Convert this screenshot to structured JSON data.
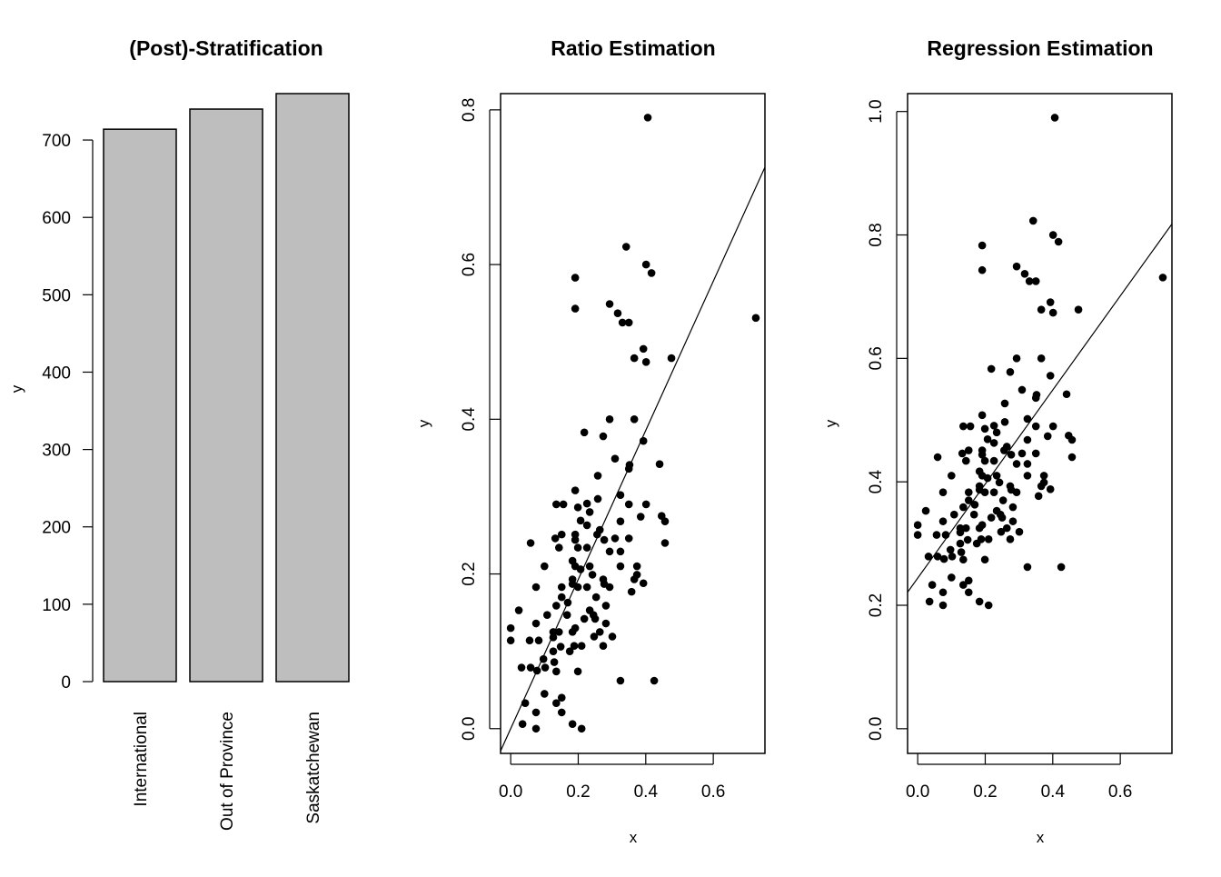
{
  "chart_data": [
    {
      "type": "bar",
      "title": "(Post)-Stratification",
      "xlabel": "",
      "ylabel": "y",
      "categories": [
        "International",
        "Out of Province",
        "Saskatchewan"
      ],
      "values": [
        714,
        740,
        760
      ],
      "ylim": [
        0,
        760
      ],
      "yticks": [
        0,
        100,
        200,
        300,
        400,
        500,
        600,
        700
      ],
      "bar_color": "#bebebe",
      "grid": false
    },
    {
      "type": "scatter",
      "title": "Ratio Estimation",
      "xlabel": "x",
      "ylabel": "y",
      "xlim": [
        -0.03,
        0.753
      ],
      "ylim": [
        -0.032,
        0.821
      ],
      "xticks": [
        "0.0",
        "0.2",
        "0.4",
        "0.6"
      ],
      "yticks": [
        "0.0",
        "0.2",
        "0.4",
        "0.6",
        "0.8"
      ],
      "grid": false,
      "fit_line": {
        "intercept": 0,
        "slope": 0.964
      },
      "x": [
        0.406,
        0.342,
        0.401,
        0.417,
        0.191,
        0.191,
        0.293,
        0.317,
        0.331,
        0.35,
        0.726,
        0.393,
        0.366,
        0.401,
        0.476,
        0.293,
        0.366,
        0.218,
        0.274,
        0.393,
        0.309,
        0.352,
        0.35,
        0.441,
        0.258,
        0.191,
        0.325,
        0.135,
        0.156,
        0.199,
        0.226,
        0.234,
        0.258,
        0.35,
        0.401,
        0.385,
        0.447,
        0.457,
        0.207,
        0.226,
        0.325,
        0.151,
        0.132,
        0.191,
        0.191,
        0.264,
        0.256,
        0.277,
        0.309,
        0.35,
        0.059,
        0.457,
        0.143,
        0.199,
        0.226,
        0.293,
        0.325,
        0.183,
        0.191,
        0.207,
        0.234,
        0.1,
        0.325,
        0.374,
        0.242,
        0.374,
        0.366,
        0.393,
        0.183,
        0.274,
        0.293,
        0.075,
        0.151,
        0.199,
        0.226,
        0.358,
        0.183,
        0.277,
        0.151,
        0.169,
        0.253,
        0.135,
        0.282,
        0.024,
        0.108,
        0.167,
        0.234,
        0.245,
        0.218,
        0.25,
        0.075,
        0.282,
        0.0,
        0.0,
        0.056,
        0.083,
        0.126,
        0.143,
        0.126,
        0.191,
        0.183,
        0.264,
        0.247,
        0.301,
        0.274,
        0.126,
        0.148,
        0.175,
        0.188,
        0.21,
        0.097,
        0.129,
        0.032,
        0.059,
        0.078,
        0.102,
        0.135,
        0.199,
        0.325,
        0.425,
        0.1,
        0.043,
        0.135,
        0.151,
        0.075,
        0.151,
        0.035,
        0.075,
        0.183,
        0.21
      ],
      "y": [
        0.79,
        0.623,
        0.6,
        0.589,
        0.583,
        0.543,
        0.549,
        0.537,
        0.525,
        0.525,
        0.531,
        0.491,
        0.479,
        0.474,
        0.479,
        0.4,
        0.4,
        0.383,
        0.378,
        0.372,
        0.349,
        0.341,
        0.336,
        0.342,
        0.327,
        0.308,
        0.302,
        0.29,
        0.29,
        0.286,
        0.291,
        0.28,
        0.297,
        0.29,
        0.29,
        0.274,
        0.275,
        0.268,
        0.269,
        0.263,
        0.268,
        0.251,
        0.246,
        0.251,
        0.244,
        0.257,
        0.251,
        0.244,
        0.246,
        0.246,
        0.24,
        0.24,
        0.234,
        0.234,
        0.234,
        0.229,
        0.229,
        0.217,
        0.21,
        0.206,
        0.21,
        0.21,
        0.21,
        0.21,
        0.199,
        0.199,
        0.193,
        0.188,
        0.193,
        0.193,
        0.183,
        0.183,
        0.183,
        0.183,
        0.183,
        0.177,
        0.187,
        0.187,
        0.17,
        0.163,
        0.17,
        0.159,
        0.159,
        0.153,
        0.147,
        0.147,
        0.153,
        0.147,
        0.142,
        0.142,
        0.136,
        0.136,
        0.13,
        0.114,
        0.114,
        0.114,
        0.125,
        0.125,
        0.118,
        0.13,
        0.125,
        0.125,
        0.119,
        0.119,
        0.107,
        0.1,
        0.106,
        0.1,
        0.107,
        0.107,
        0.09,
        0.086,
        0.079,
        0.079,
        0.075,
        0.079,
        0.074,
        0.074,
        0.062,
        0.062,
        0.045,
        0.033,
        0.033,
        0.04,
        0.021,
        0.021,
        0.006,
        0.0,
        0.006,
        0.0
      ]
    },
    {
      "type": "scatter",
      "title": "Regression Estimation",
      "xlabel": "x",
      "ylabel": "y",
      "xlim": [
        -0.03,
        0.753
      ],
      "ylim": [
        -0.04,
        1.029
      ],
      "xticks": [
        "0.0",
        "0.2",
        "0.4",
        "0.6"
      ],
      "yticks": [
        "0.0",
        "0.2",
        "0.4",
        "0.6",
        "0.8",
        "1.0"
      ],
      "grid": false,
      "fit_line": {
        "intercept": 0.244,
        "slope": 0.762
      },
      "x": [
        0.406,
        0.342,
        0.401,
        0.417,
        0.191,
        0.191,
        0.293,
        0.317,
        0.331,
        0.35,
        0.726,
        0.393,
        0.366,
        0.401,
        0.476,
        0.293,
        0.366,
        0.218,
        0.274,
        0.393,
        0.309,
        0.352,
        0.35,
        0.441,
        0.258,
        0.191,
        0.325,
        0.135,
        0.156,
        0.199,
        0.226,
        0.234,
        0.258,
        0.35,
        0.401,
        0.385,
        0.447,
        0.457,
        0.207,
        0.226,
        0.325,
        0.151,
        0.132,
        0.191,
        0.191,
        0.264,
        0.256,
        0.277,
        0.309,
        0.35,
        0.059,
        0.457,
        0.143,
        0.199,
        0.226,
        0.293,
        0.325,
        0.183,
        0.191,
        0.207,
        0.234,
        0.1,
        0.325,
        0.374,
        0.242,
        0.374,
        0.366,
        0.393,
        0.183,
        0.274,
        0.293,
        0.075,
        0.151,
        0.199,
        0.226,
        0.358,
        0.183,
        0.277,
        0.151,
        0.169,
        0.253,
        0.135,
        0.282,
        0.024,
        0.108,
        0.167,
        0.234,
        0.245,
        0.218,
        0.25,
        0.075,
        0.282,
        0.0,
        0.0,
        0.056,
        0.083,
        0.126,
        0.143,
        0.126,
        0.191,
        0.183,
        0.264,
        0.247,
        0.301,
        0.274,
        0.126,
        0.148,
        0.175,
        0.188,
        0.21,
        0.097,
        0.129,
        0.032,
        0.059,
        0.078,
        0.102,
        0.135,
        0.199,
        0.325,
        0.425,
        0.1,
        0.043,
        0.135,
        0.151,
        0.075,
        0.151,
        0.035,
        0.075,
        0.183,
        0.21
      ],
      "y": [
        0.99,
        0.823,
        0.8,
        0.789,
        0.783,
        0.743,
        0.749,
        0.737,
        0.725,
        0.725,
        0.731,
        0.691,
        0.679,
        0.674,
        0.679,
        0.6,
        0.6,
        0.583,
        0.578,
        0.572,
        0.549,
        0.541,
        0.536,
        0.542,
        0.527,
        0.508,
        0.502,
        0.49,
        0.49,
        0.486,
        0.491,
        0.48,
        0.497,
        0.49,
        0.49,
        0.474,
        0.475,
        0.468,
        0.469,
        0.463,
        0.468,
        0.451,
        0.446,
        0.451,
        0.444,
        0.457,
        0.451,
        0.444,
        0.446,
        0.446,
        0.44,
        0.44,
        0.434,
        0.434,
        0.434,
        0.429,
        0.429,
        0.417,
        0.41,
        0.406,
        0.41,
        0.41,
        0.41,
        0.41,
        0.399,
        0.399,
        0.393,
        0.388,
        0.393,
        0.393,
        0.383,
        0.383,
        0.383,
        0.383,
        0.383,
        0.377,
        0.387,
        0.387,
        0.37,
        0.363,
        0.37,
        0.359,
        0.359,
        0.353,
        0.347,
        0.347,
        0.353,
        0.347,
        0.342,
        0.342,
        0.336,
        0.336,
        0.33,
        0.314,
        0.314,
        0.314,
        0.325,
        0.325,
        0.318,
        0.33,
        0.325,
        0.325,
        0.319,
        0.319,
        0.307,
        0.3,
        0.306,
        0.3,
        0.307,
        0.307,
        0.29,
        0.286,
        0.279,
        0.279,
        0.275,
        0.279,
        0.274,
        0.274,
        0.262,
        0.262,
        0.245,
        0.233,
        0.233,
        0.24,
        0.221,
        0.221,
        0.206,
        0.2,
        0.206,
        0.2
      ]
    }
  ]
}
